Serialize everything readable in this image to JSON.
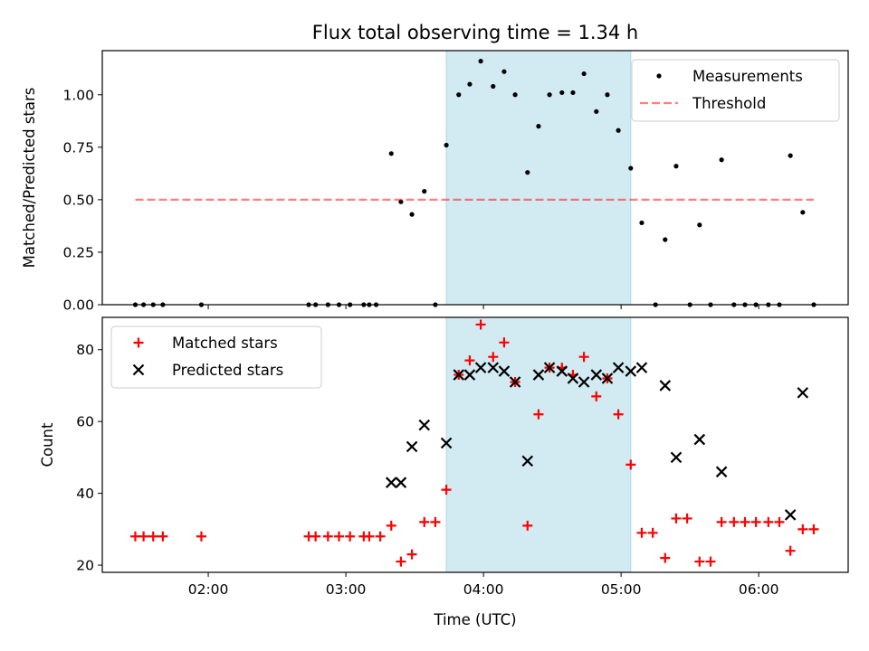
{
  "figure": {
    "title": "Flux total observing time = 1.34 h",
    "xlabel": "Time (UTC)",
    "x_ticks": [
      "02:00",
      "03:00",
      "04:00",
      "05:00",
      "06:00"
    ],
    "x_tick_hours": [
      2,
      3,
      4,
      5,
      6
    ],
    "x_range_hours": [
      1.23,
      6.65
    ],
    "highlight_span_hours": [
      3.73,
      5.07
    ],
    "highlight_color": "#add8e6"
  },
  "chart_data": [
    {
      "type": "scatter",
      "ylabel": "Matched/Predicted stars",
      "ylim": [
        0,
        1.21
      ],
      "y_ticks": [
        "0.00",
        "0.25",
        "0.50",
        "0.75",
        "1.00"
      ],
      "y_tick_values": [
        0,
        0.25,
        0.5,
        0.75,
        1.0
      ],
      "legend_position": "top-right",
      "grid": false,
      "series": [
        {
          "name": "Measurements",
          "kind": "scatter",
          "color": "#000000",
          "marker": "dot",
          "x": [
            1.47,
            1.53,
            1.6,
            1.67,
            1.95,
            2.73,
            2.78,
            2.87,
            2.95,
            3.03,
            3.13,
            3.17,
            3.22,
            3.33,
            3.4,
            3.48,
            3.57,
            3.65,
            3.73,
            3.82,
            3.9,
            3.98,
            4.07,
            4.15,
            4.23,
            4.32,
            4.4,
            4.48,
            4.57,
            4.65,
            4.73,
            4.82,
            4.9,
            4.98,
            5.07,
            5.15,
            5.25,
            5.32,
            5.4,
            5.5,
            5.57,
            5.65,
            5.73,
            5.82,
            5.9,
            5.98,
            6.07,
            6.15,
            6.23,
            6.32,
            6.4
          ],
          "y": [
            0,
            0,
            0,
            0,
            0,
            0,
            0,
            0,
            0,
            0,
            0,
            0,
            0,
            0.72,
            0.49,
            0.43,
            0.54,
            0,
            0.76,
            1.0,
            1.05,
            1.16,
            1.04,
            1.11,
            1.0,
            0.63,
            0.85,
            1.0,
            1.01,
            1.01,
            1.1,
            0.92,
            1.0,
            0.83,
            0.65,
            0.39,
            0,
            0.31,
            0.66,
            0,
            0.38,
            0,
            0.69,
            0,
            0,
            0,
            0,
            0,
            0.71,
            0.44,
            0
          ]
        },
        {
          "name": "Threshold",
          "kind": "line",
          "color": "#ff0000",
          "opacity": 0.5,
          "dash": "dashed",
          "x": [
            1.47,
            6.4
          ],
          "y": [
            0.5,
            0.5
          ]
        }
      ]
    },
    {
      "type": "scatter",
      "ylabel": "Count",
      "ylim": [
        18,
        89
      ],
      "y_ticks": [
        "20",
        "40",
        "60",
        "80"
      ],
      "y_tick_values": [
        20,
        40,
        60,
        80
      ],
      "legend_position": "top-left",
      "grid": false,
      "series": [
        {
          "name": "Matched stars",
          "kind": "plus",
          "color": "#ff0000",
          "x": [
            1.47,
            1.53,
            1.6,
            1.67,
            1.95,
            2.73,
            2.78,
            2.87,
            2.95,
            3.03,
            3.13,
            3.17,
            3.25,
            3.33,
            3.4,
            3.48,
            3.57,
            3.65,
            3.73,
            3.82,
            3.9,
            3.98,
            4.07,
            4.15,
            4.23,
            4.32,
            4.4,
            4.48,
            4.57,
            4.65,
            4.73,
            4.82,
            4.9,
            4.98,
            5.07,
            5.15,
            5.23,
            5.32,
            5.4,
            5.48,
            5.57,
            5.65,
            5.73,
            5.82,
            5.9,
            5.98,
            6.07,
            6.15,
            6.23,
            6.32,
            6.4
          ],
          "y": [
            28,
            28,
            28,
            28,
            28,
            28,
            28,
            28,
            28,
            28,
            28,
            28,
            28,
            31,
            21,
            23,
            32,
            32,
            41,
            73,
            77,
            87,
            78,
            82,
            71,
            31,
            62,
            75,
            75,
            73,
            78,
            67,
            72,
            62,
            48,
            29,
            29,
            22,
            33,
            33,
            21,
            21,
            32,
            32,
            32,
            32,
            32,
            32,
            24,
            30,
            30
          ]
        },
        {
          "name": "Predicted stars",
          "kind": "x",
          "color": "#000000",
          "x": [
            3.33,
            3.4,
            3.48,
            3.57,
            3.73,
            3.82,
            3.9,
            3.98,
            4.07,
            4.15,
            4.23,
            4.32,
            4.4,
            4.48,
            4.57,
            4.65,
            4.73,
            4.82,
            4.9,
            4.98,
            5.07,
            5.15,
            5.32,
            5.4,
            5.57,
            5.73,
            6.23,
            6.32
          ],
          "y": [
            43,
            43,
            53,
            59,
            54,
            73,
            73,
            75,
            75,
            74,
            71,
            49,
            73,
            75,
            74,
            72,
            71,
            73,
            72,
            75,
            74,
            75,
            70,
            50,
            55,
            46,
            34,
            68
          ]
        }
      ]
    }
  ]
}
